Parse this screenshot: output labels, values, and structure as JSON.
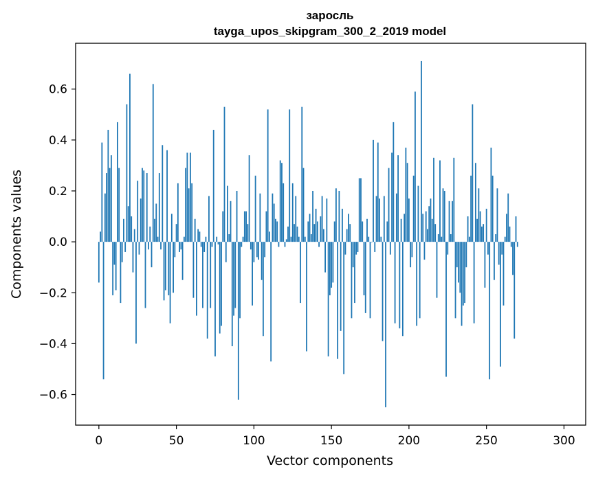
{
  "chart_data": {
    "type": "bar",
    "title": "заросль",
    "subtitle": "tayga_upos_skipgram_300_2_2019 model",
    "xlabel": "Vector components",
    "ylabel": "Components values",
    "xlim": [
      -15,
      314
    ],
    "ylim": [
      -0.72,
      0.78
    ],
    "xticks": [
      0,
      50,
      100,
      150,
      200,
      250,
      300
    ],
    "yticks": [
      -0.6,
      -0.4,
      -0.2,
      0.0,
      0.2,
      0.4,
      0.6
    ],
    "ytick_labels": [
      "−0.6",
      "−0.4",
      "−0.2",
      "0.0",
      "0.2",
      "0.4",
      "0.6"
    ],
    "xtick_labels": [
      "0",
      "50",
      "100",
      "150",
      "200",
      "250",
      "300"
    ],
    "grid": false,
    "bar_color": "#1f77b4",
    "x_start": 0,
    "values": [
      -0.16,
      0.04,
      0.39,
      -0.54,
      0.19,
      0.27,
      0.44,
      0.29,
      0.34,
      -0.21,
      -0.09,
      -0.19,
      0.47,
      0.29,
      -0.24,
      -0.08,
      0.09,
      -0.04,
      0.54,
      0.14,
      0.66,
      0.1,
      -0.12,
      0.05,
      -0.4,
      0.24,
      -0.05,
      0.17,
      0.29,
      0.28,
      -0.26,
      0.27,
      -0.03,
      0.06,
      -0.1,
      0.62,
      0.09,
      0.15,
      0.02,
      0.27,
      -0.03,
      0.38,
      -0.23,
      -0.19,
      0.36,
      -0.21,
      -0.32,
      0.11,
      -0.2,
      -0.06,
      0.07,
      0.23,
      -0.04,
      -0.03,
      -0.15,
      0.02,
      0.29,
      0.35,
      0.21,
      0.35,
      0.23,
      -0.22,
      0.09,
      -0.29,
      0.05,
      0.04,
      -0.02,
      -0.26,
      -0.04,
      0.02,
      -0.38,
      0.18,
      -0.26,
      -0.02,
      0.44,
      -0.45,
      0.02,
      -0.01,
      -0.36,
      -0.33,
      0.12,
      0.53,
      -0.08,
      0.22,
      0.03,
      0.16,
      -0.41,
      -0.29,
      -0.26,
      0.2,
      -0.62,
      -0.3,
      -0.02,
      0.02,
      0.12,
      0.12,
      0.07,
      0.34,
      -0.03,
      -0.25,
      -0.08,
      0.26,
      -0.06,
      -0.07,
      0.19,
      -0.15,
      -0.37,
      -0.06,
      0.12,
      0.52,
      0.04,
      -0.47,
      0.19,
      0.15,
      0.09,
      0.08,
      -0.02,
      0.32,
      0.31,
      0.23,
      -0.02,
      0.01,
      0.06,
      0.52,
      0.02,
      0.23,
      0.07,
      0.18,
      0.06,
      0.02,
      -0.24,
      0.53,
      0.29,
      0.02,
      -0.43,
      0.08,
      0.11,
      0.03,
      0.2,
      0.07,
      0.13,
      0.08,
      -0.02,
      0.1,
      0.18,
      0.05,
      -0.12,
      0.17,
      -0.45,
      -0.21,
      -0.18,
      -0.16,
      0.08,
      0.21,
      -0.46,
      0.2,
      -0.35,
      0.13,
      -0.52,
      -0.05,
      0.05,
      0.11,
      0.07,
      -0.3,
      -0.1,
      -0.24,
      -0.05,
      -0.04,
      0.25,
      0.25,
      0.08,
      -0.21,
      -0.28,
      0.09,
      0.02,
      -0.3,
      0.0,
      0.4,
      -0.04,
      0.18,
      0.39,
      0.17,
      0.02,
      -0.39,
      0.18,
      -0.65,
      0.08,
      0.29,
      -0.05,
      0.35,
      0.47,
      -0.32,
      0.19,
      0.34,
      -0.34,
      0.09,
      -0.37,
      0.11,
      0.37,
      0.31,
      0.17,
      -0.1,
      -0.06,
      0.26,
      0.59,
      -0.33,
      0.22,
      -0.3,
      0.71,
      0.11,
      -0.07,
      0.12,
      0.05,
      0.14,
      0.17,
      0.09,
      0.33,
      0.07,
      -0.22,
      0.03,
      0.32,
      0.02,
      0.21,
      0.2,
      -0.53,
      -0.05,
      0.16,
      0.03,
      0.16,
      0.33,
      -0.3,
      -0.1,
      -0.16,
      -0.2,
      -0.33,
      -0.25,
      -0.24,
      -0.1,
      0.1,
      0.02,
      0.26,
      0.54,
      -0.32,
      0.31,
      0.09,
      0.21,
      0.12,
      0.06,
      0.07,
      -0.18,
      0.13,
      -0.05,
      -0.54,
      0.37,
      0.26,
      -0.15,
      0.03,
      0.21,
      -0.09,
      -0.49,
      -0.05,
      -0.25,
      0.02,
      0.11,
      0.19,
      0.06,
      -0.02,
      -0.13,
      -0.38,
      0.1,
      -0.02
    ]
  }
}
